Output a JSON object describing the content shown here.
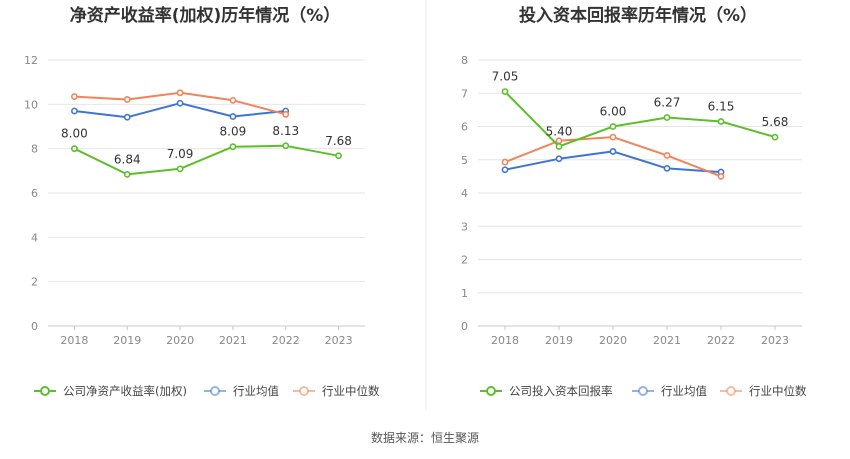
{
  "source_label": "数据来源：恒生聚源",
  "chart_data": [
    {
      "type": "line",
      "title": "净资产收益率(加权)历年情况（%）",
      "categories": [
        "2018",
        "2019",
        "2020",
        "2021",
        "2022",
        "2023"
      ],
      "ylim": [
        0,
        12
      ],
      "yticks": [
        "0",
        "2",
        "4",
        "6",
        "8",
        "10",
        "12"
      ],
      "grid": true,
      "legend_position": "bottom-left",
      "series": [
        {
          "name": "公司净资产收益率(加权)",
          "color": "#5cbf2a",
          "values": [
            8.0,
            6.84,
            7.09,
            8.09,
            8.13,
            7.68
          ],
          "labels": [
            "8.00",
            "6.84",
            "7.09",
            "8.09",
            "8.13",
            "7.68"
          ]
        },
        {
          "name": "行业均值",
          "color": "#3f74d6",
          "values": [
            9.7,
            9.42,
            10.05,
            9.45,
            9.7,
            null
          ]
        },
        {
          "name": "行业中位数",
          "color": "#f0845a",
          "values": [
            10.35,
            10.22,
            10.52,
            10.18,
            9.55,
            null
          ]
        }
      ]
    },
    {
      "type": "line",
      "title": "投入资本回报率历年情况（%）",
      "categories": [
        "2018",
        "2019",
        "2020",
        "2021",
        "2022",
        "2023"
      ],
      "ylim": [
        0,
        8
      ],
      "yticks": [
        "0",
        "1",
        "2",
        "3",
        "4",
        "5",
        "6",
        "7",
        "8"
      ],
      "grid": true,
      "legend_position": "bottom-left",
      "series": [
        {
          "name": "公司投入资本回报率",
          "color": "#5cbf2a",
          "values": [
            7.05,
            5.4,
            6.0,
            6.27,
            6.15,
            5.68
          ],
          "labels": [
            "7.05",
            "5.40",
            "6.00",
            "6.27",
            "6.15",
            "5.68"
          ]
        },
        {
          "name": "行业均值",
          "color": "#3f74d6",
          "values": [
            4.7,
            5.03,
            5.25,
            4.74,
            4.63,
            null
          ]
        },
        {
          "name": "行业中位数",
          "color": "#f0845a",
          "values": [
            4.93,
            5.57,
            5.68,
            5.13,
            4.5,
            null
          ]
        }
      ]
    }
  ]
}
